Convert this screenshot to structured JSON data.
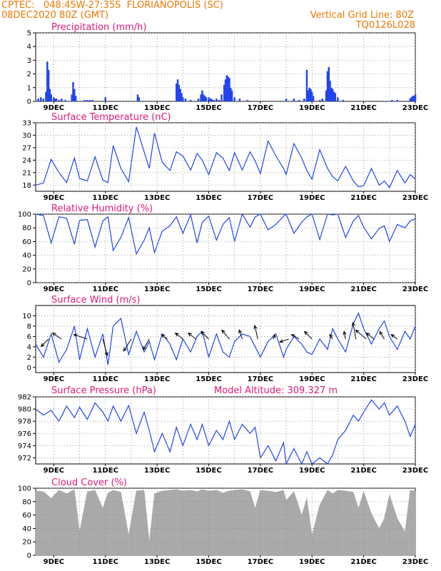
{
  "header": {
    "left_line1": "CPTEC:   048:45W-27:35S  FLORIANOPOLIS (SC)",
    "left_line2": "08DEC2020 80Z (GMT)",
    "right_line1": "Vertical Grid Line: 80Z",
    "right_line2": "TQ0126L028"
  },
  "colors": {
    "header": "#ee7700",
    "title": "#e0187a",
    "line": "#2244ee",
    "bars": "#2244ee",
    "cloud": "#aaaaaa",
    "wind": "#000000"
  },
  "x_axis": {
    "day_ticks": [
      9,
      11,
      13,
      15,
      17,
      19,
      21,
      23
    ],
    "tick_labels": [
      "9DEC",
      "11DEC",
      "13DEC",
      "15DEC",
      "17DEC",
      "19DEC",
      "21DEC",
      "23DEC"
    ],
    "x_range_days": [
      8.3,
      23.0
    ]
  },
  "chart_data": [
    {
      "type": "bar",
      "title": "Precipitation (mm/h)",
      "ylim": [
        0,
        5
      ],
      "yticks": [
        0,
        1,
        2,
        3,
        4,
        5
      ],
      "x": [
        8.4,
        8.5,
        8.6,
        8.7,
        8.75,
        8.8,
        8.85,
        8.9,
        9.0,
        9.05,
        9.1,
        9.2,
        9.3,
        9.45,
        9.7,
        9.75,
        9.8,
        9.85,
        10.2,
        10.3,
        10.4,
        10.5,
        11.0,
        12.25,
        12.3,
        13.75,
        13.8,
        13.85,
        13.9,
        13.95,
        14.0,
        14.1,
        14.3,
        14.6,
        14.7,
        14.75,
        14.8,
        14.85,
        14.9,
        15.0,
        15.05,
        15.1,
        15.15,
        15.2,
        15.3,
        15.4,
        15.5,
        15.6,
        15.65,
        15.7,
        15.75,
        15.8,
        15.85,
        15.9,
        16.0,
        16.2,
        16.5,
        18.0,
        18.3,
        18.5,
        18.7,
        18.8,
        18.85,
        18.9,
        18.95,
        19.0,
        19.05,
        19.3,
        19.4,
        19.55,
        19.6,
        19.65,
        19.7,
        19.75,
        19.8,
        19.85,
        19.9,
        20.0,
        20.2,
        22.1,
        22.3,
        22.8,
        22.85,
        22.9,
        22.95,
        23.0
      ],
      "values": [
        0.2,
        0.3,
        0.2,
        0.7,
        2.9,
        2.3,
        0.9,
        0.5,
        0.3,
        0.2,
        0.2,
        0.1,
        0.2,
        0.1,
        0.5,
        1.4,
        0.9,
        0.4,
        0.1,
        0.1,
        0.1,
        0.1,
        0.3,
        0.5,
        0.3,
        1.3,
        1.6,
        1.2,
        0.9,
        0.6,
        0.3,
        0.2,
        0.1,
        0.2,
        0.5,
        0.8,
        0.5,
        0.4,
        0.3,
        0.3,
        0.2,
        0.2,
        0.1,
        0.1,
        0.2,
        0.1,
        0.5,
        1.2,
        1.6,
        1.9,
        1.8,
        1.7,
        1.0,
        0.8,
        0.3,
        0.2,
        0.1,
        0.2,
        0.2,
        0.1,
        0.2,
        2.3,
        0.8,
        1.0,
        0.9,
        0.7,
        0.4,
        0.1,
        0.2,
        0.8,
        2.2,
        2.5,
        1.5,
        1.0,
        0.9,
        0.7,
        0.6,
        0.3,
        0.1,
        0.1,
        0.1,
        0.2,
        0.3,
        0.4,
        0.4,
        0.5
      ]
    },
    {
      "type": "line",
      "title": "Surface Temperature (nC)",
      "ylim": [
        16.5,
        33
      ],
      "yticks": [
        18,
        21,
        24,
        27,
        30,
        33
      ],
      "x": [
        8.3,
        8.6,
        8.9,
        9.2,
        9.5,
        9.8,
        10.0,
        10.3,
        10.6,
        10.9,
        11.1,
        11.3,
        11.6,
        11.9,
        12.2,
        12.5,
        12.7,
        12.9,
        13.2,
        13.5,
        13.75,
        14.0,
        14.3,
        14.55,
        14.75,
        15.0,
        15.3,
        15.55,
        15.8,
        16.0,
        16.3,
        16.6,
        16.8,
        17.0,
        17.3,
        17.6,
        17.9,
        18.0,
        18.3,
        18.6,
        18.8,
        19.0,
        19.3,
        19.6,
        19.8,
        20.0,
        20.3,
        20.6,
        20.8,
        21.0,
        21.3,
        21.6,
        21.8,
        22.0,
        22.3,
        22.6,
        22.8,
        23.0
      ],
      "values": [
        18.0,
        18.5,
        24.2,
        21.0,
        18.6,
        24.5,
        19.6,
        19.0,
        24.8,
        19.2,
        18.6,
        27.5,
        22.0,
        18.8,
        32.0,
        26.0,
        22.0,
        30.5,
        23.5,
        21.5,
        26.0,
        25.0,
        21.6,
        25.6,
        24.0,
        20.5,
        25.8,
        24.5,
        21.5,
        25.8,
        21.6,
        26.0,
        23.8,
        20.8,
        28.6,
        25.0,
        22.0,
        20.5,
        28.0,
        24.5,
        21.5,
        19.4,
        26.5,
        22.0,
        20.0,
        19.0,
        22.5,
        19.0,
        17.6,
        17.8,
        22.0,
        18.0,
        19.0,
        17.4,
        21.5,
        18.5,
        20.5,
        19.5
      ]
    },
    {
      "type": "line",
      "title": "Relative Humidity (%)",
      "ylim": [
        0,
        100
      ],
      "yticks": [
        0,
        20,
        40,
        60,
        80,
        100
      ],
      "x": [
        8.3,
        8.6,
        8.9,
        9.2,
        9.5,
        9.8,
        10.0,
        10.3,
        10.6,
        10.9,
        11.1,
        11.3,
        11.6,
        11.9,
        12.2,
        12.5,
        12.7,
        12.9,
        13.2,
        13.5,
        13.75,
        14.0,
        14.3,
        14.55,
        14.75,
        15.0,
        15.3,
        15.55,
        15.8,
        16.0,
        16.3,
        16.6,
        16.8,
        17.0,
        17.3,
        17.6,
        17.9,
        18.0,
        18.3,
        18.6,
        18.8,
        19.0,
        19.3,
        19.6,
        19.8,
        20.0,
        20.3,
        20.6,
        20.8,
        21.0,
        21.3,
        21.6,
        21.8,
        22.0,
        22.3,
        22.6,
        22.8,
        23.0
      ],
      "values": [
        100,
        98,
        58,
        96,
        94,
        56,
        91,
        92,
        52,
        90,
        96,
        47,
        66,
        95,
        42,
        62,
        80,
        44,
        75,
        83,
        96,
        72,
        99,
        58,
        88,
        97,
        62,
        85,
        95,
        60,
        100,
        81,
        96,
        100,
        77,
        85,
        97,
        100,
        72,
        88,
        96,
        100,
        63,
        100,
        99,
        100,
        66,
        90,
        98,
        81,
        64,
        79,
        83,
        60,
        85,
        80,
        90,
        93
      ]
    },
    {
      "type": "line",
      "title": "Surface Wind (m/s)",
      "ylim": [
        -1,
        12
      ],
      "yticks": [
        0,
        2,
        4,
        6,
        8,
        10
      ],
      "x": [
        8.3,
        8.6,
        8.9,
        9.2,
        9.5,
        9.8,
        10.0,
        10.3,
        10.6,
        10.9,
        11.1,
        11.3,
        11.6,
        11.9,
        12.2,
        12.5,
        12.7,
        12.9,
        13.2,
        13.5,
        13.75,
        14.0,
        14.3,
        14.55,
        14.75,
        15.0,
        15.3,
        15.55,
        15.8,
        16.0,
        16.3,
        16.6,
        16.8,
        17.0,
        17.3,
        17.6,
        17.9,
        18.0,
        18.3,
        18.6,
        18.8,
        19.0,
        19.3,
        19.6,
        19.8,
        20.0,
        20.3,
        20.6,
        20.8,
        21.0,
        21.3,
        21.6,
        21.8,
        22.0,
        22.3,
        22.6,
        22.8,
        23.0
      ],
      "values": [
        4.5,
        2.0,
        6.5,
        1.0,
        3.5,
        8.0,
        1.5,
        7.5,
        2.0,
        6.5,
        0.5,
        8.0,
        9.5,
        2.5,
        7.0,
        3.0,
        5.0,
        1.5,
        6.5,
        4.5,
        1.5,
        5.5,
        3.0,
        6.0,
        7.0,
        2.0,
        6.5,
        3.0,
        2.0,
        5.0,
        6.5,
        6.0,
        4.0,
        2.0,
        5.0,
        6.5,
        2.0,
        3.5,
        6.0,
        4.5,
        3.0,
        2.5,
        5.5,
        3.5,
        7.5,
        5.5,
        3.0,
        8.5,
        10.5,
        7.5,
        4.5,
        7.5,
        9.0,
        6.0,
        3.5,
        7.0,
        5.5,
        8.0
      ],
      "vectors": {
        "x": [
          8.8,
          9.3,
          10.3,
          10.9,
          12.0,
          12.7,
          13.4,
          14.0,
          14.5,
          15.0,
          15.8,
          16.3,
          16.9,
          17.5,
          18.1,
          18.5,
          19.0,
          19.8,
          20.3,
          20.7,
          21.1,
          21.4,
          21.8,
          22.3
        ],
        "u": [
          -2.5,
          -3.0,
          -4.5,
          1.5,
          -2.5,
          -2.0,
          -2.0,
          -2.5,
          -2.5,
          -2.5,
          -2.5,
          -1.0,
          -1.0,
          0.5,
          -3.0,
          -2.5,
          -2.5,
          -1.0,
          -0.5,
          -1.0,
          -3.5,
          -2.5,
          -1.5,
          -2.0
        ],
        "v": [
          -2.5,
          2.0,
          1.5,
          -5.5,
          -4.0,
          -3.5,
          1.5,
          2.0,
          2.0,
          2.5,
          3.0,
          3.0,
          4.5,
          1.5,
          -1.0,
          1.5,
          2.5,
          1.5,
          2.5,
          5.5,
          3.0,
          2.0,
          2.5,
          1.5
        ]
      }
    },
    {
      "type": "line",
      "title": "Surface Pressure (hPa)",
      "annotation": "Model Altitude: 309.327 m",
      "ylim": [
        971,
        982
      ],
      "yticks": [
        972,
        974,
        976,
        978,
        980,
        982
      ],
      "x": [
        8.3,
        8.6,
        8.9,
        9.2,
        9.5,
        9.8,
        10.0,
        10.3,
        10.6,
        10.9,
        11.1,
        11.3,
        11.6,
        11.9,
        12.2,
        12.5,
        12.7,
        12.9,
        13.2,
        13.5,
        13.75,
        14.0,
        14.3,
        14.55,
        14.75,
        15.0,
        15.3,
        15.55,
        15.8,
        16.0,
        16.3,
        16.6,
        16.8,
        17.0,
        17.3,
        17.6,
        17.9,
        18.0,
        18.3,
        18.6,
        18.8,
        19.0,
        19.3,
        19.6,
        19.8,
        20.0,
        20.3,
        20.6,
        20.8,
        21.0,
        21.3,
        21.6,
        21.8,
        22.0,
        22.3,
        22.6,
        22.8,
        23.0
      ],
      "values": [
        980.0,
        979.0,
        979.8,
        978.0,
        980.5,
        978.6,
        980.3,
        978.3,
        981.0,
        979.5,
        978.0,
        980.5,
        978.0,
        980.6,
        976.0,
        979.5,
        976.5,
        973.0,
        976.0,
        973.0,
        977.0,
        974.0,
        977.5,
        975.0,
        977.5,
        974.0,
        976.5,
        975.0,
        978.0,
        975.0,
        977.5,
        976.0,
        977.0,
        972.0,
        974.0,
        971.5,
        974.5,
        971.0,
        973.5,
        970.5,
        973.0,
        971.0,
        972.0,
        970.0,
        972.5,
        975.0,
        976.5,
        979.0,
        978.0,
        979.5,
        981.5,
        980.0,
        981.0,
        979.0,
        980.5,
        978.0,
        975.5,
        977.5
      ]
    },
    {
      "type": "area",
      "title": "Cloud Cover (%)",
      "ylim": [
        0,
        100
      ],
      "yticks": [
        0,
        20,
        40,
        60,
        80,
        100
      ],
      "x": [
        8.3,
        8.6,
        8.9,
        9.2,
        9.5,
        9.8,
        10.0,
        10.3,
        10.6,
        10.9,
        11.1,
        11.3,
        11.6,
        11.9,
        12.2,
        12.5,
        12.7,
        12.9,
        13.2,
        13.5,
        13.75,
        14.0,
        14.3,
        14.55,
        14.75,
        15.0,
        15.3,
        15.55,
        15.8,
        16.0,
        16.3,
        16.6,
        16.8,
        17.0,
        17.3,
        17.6,
        17.9,
        18.0,
        18.3,
        18.6,
        18.8,
        19.0,
        19.3,
        19.6,
        19.8,
        20.0,
        20.3,
        20.6,
        20.8,
        21.0,
        21.3,
        21.6,
        21.8,
        22.0,
        22.3,
        22.6,
        22.8,
        23.0
      ],
      "values": [
        96,
        95,
        85,
        97,
        92,
        98,
        35,
        95,
        97,
        70,
        93,
        97,
        94,
        30,
        96,
        97,
        20,
        92,
        96,
        97,
        98,
        96,
        97,
        95,
        98,
        96,
        97,
        93,
        96,
        97,
        98,
        95,
        70,
        97,
        96,
        94,
        97,
        82,
        95,
        60,
        85,
        30,
        75,
        97,
        92,
        97,
        96,
        94,
        70,
        95,
        62,
        40,
        55,
        90,
        55,
        35,
        97,
        96
      ]
    }
  ]
}
